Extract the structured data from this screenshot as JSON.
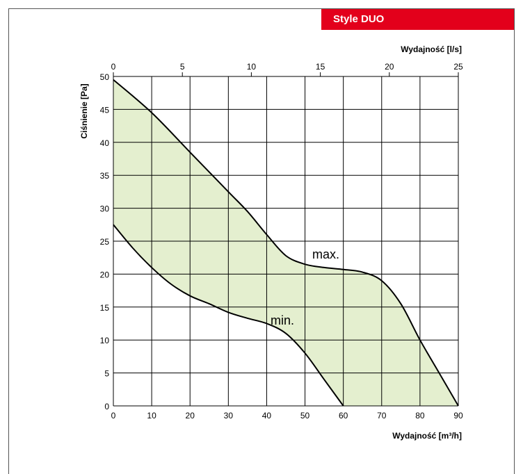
{
  "badge": {
    "text": "Style DUO"
  },
  "chart_data": {
    "type": "area",
    "xlabel": "Wydajność [m³/h]",
    "x2label": "Wydajność [l/s]",
    "ylabel": "Ciśnienie [Pa]",
    "xlim": [
      0,
      90
    ],
    "x2lim": [
      0,
      25
    ],
    "ylim": [
      0,
      50
    ],
    "x_ticks": [
      0,
      10,
      20,
      30,
      40,
      50,
      60,
      70,
      80,
      90
    ],
    "x2_ticks": [
      0,
      5,
      10,
      15,
      20,
      25
    ],
    "y_ticks": [
      0,
      5,
      10,
      15,
      20,
      25,
      30,
      35,
      40,
      45,
      50
    ],
    "grid": true,
    "fill_color": "#e4efcf",
    "series": [
      {
        "name": "max.",
        "x": [
          0,
          10,
          20,
          30,
          35,
          40,
          45,
          50,
          55,
          60,
          65,
          70,
          75,
          80,
          85,
          90
        ],
        "y": [
          49.5,
          44.5,
          38.5,
          32.5,
          29.5,
          26,
          22.8,
          21.5,
          21,
          20.7,
          20.3,
          19,
          15.5,
          10,
          5,
          0
        ]
      },
      {
        "name": "min.",
        "x": [
          0,
          5,
          10,
          15,
          20,
          25,
          30,
          35,
          40,
          45,
          50,
          55,
          60
        ],
        "y": [
          27.5,
          24,
          21,
          18.5,
          16.7,
          15.5,
          14.2,
          13.3,
          12.5,
          11,
          8,
          4,
          0
        ]
      }
    ],
    "annotations": [
      "max.",
      "min."
    ]
  }
}
